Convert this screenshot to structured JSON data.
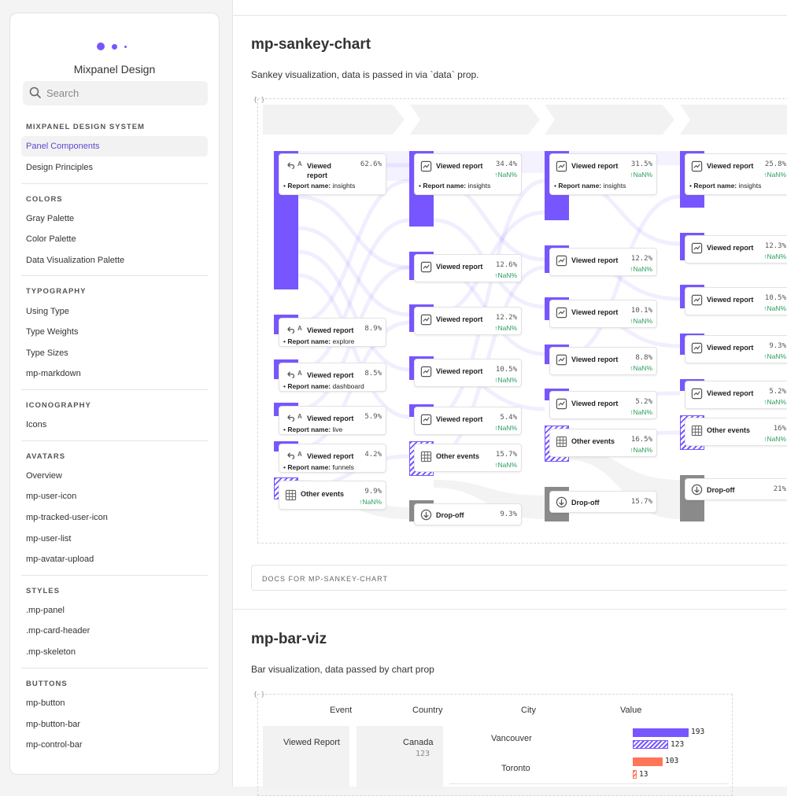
{
  "sidebar": {
    "brand": "Mixpanel Design",
    "search_placeholder": "Search",
    "sections": [
      {
        "title": "MIXPANEL DESIGN SYSTEM",
        "items": [
          "Panel Components",
          "Design Principles"
        ]
      },
      {
        "title": "COLORS",
        "items": [
          "Gray Palette",
          "Color Palette",
          "Data Visualization Palette"
        ]
      },
      {
        "title": "TYPOGRAPHY",
        "items": [
          "Using Type",
          "Type Weights",
          "Type Sizes",
          "mp-markdown"
        ]
      },
      {
        "title": "ICONOGRAPHY",
        "items": [
          "Icons"
        ]
      },
      {
        "title": "AVATARS",
        "items": [
          "Overview",
          "mp-user-icon",
          "mp-tracked-user-icon",
          "mp-user-list",
          "mp-avatar-upload"
        ]
      },
      {
        "title": "STYLES",
        "items": [
          ".mp-panel",
          ".mp-card-header",
          ".mp-skeleton"
        ]
      },
      {
        "title": "BUTTONS",
        "items": [
          "mp-button",
          "mp-button-bar",
          "mp-control-bar"
        ]
      }
    ],
    "active_item": "Panel Components"
  },
  "sankey_section": {
    "title": "mp-sankey-chart",
    "description": "Sankey visualization, data is passed in via `data` prop.",
    "braces": "{ }",
    "docs_label": "DOCS FOR MP-SANKEY-CHART"
  },
  "sankey": {
    "colors": {
      "accent": "#7856ff",
      "dropoff": "#8a8a8a",
      "positive": "#2a9d5b"
    },
    "columns": [
      {
        "nodes": [
          {
            "title": "Viewed report",
            "pct": "62.6%",
            "prop_key": "Report name:",
            "prop_val": "insights",
            "icon": "undo-icon"
          },
          {
            "title": "Viewed report",
            "pct": "8.9%",
            "prop_key": "Report name:",
            "prop_val": "explore",
            "icon": "undo-icon"
          },
          {
            "title": "Viewed report",
            "pct": "8.5%",
            "prop_key": "Report name:",
            "prop_val": "dashboard",
            "icon": "undo-icon"
          },
          {
            "title": "Viewed report",
            "pct": "5.9%",
            "prop_key": "Report name:",
            "prop_val": "live",
            "icon": "undo-icon"
          },
          {
            "title": "Viewed report",
            "pct": "4.2%",
            "prop_key": "Report name:",
            "prop_val": "funnels",
            "icon": "undo-icon"
          },
          {
            "title": "Other events",
            "pct": "9.9%",
            "delta": "↑NaN%",
            "icon": "grid-icon"
          }
        ]
      },
      {
        "nodes": [
          {
            "title": "Viewed report",
            "pct": "34.4%",
            "delta": "↑NaN%",
            "prop_key": "Report name:",
            "prop_val": "insights"
          },
          {
            "title": "Viewed report",
            "pct": "12.6%",
            "delta": "↑NaN%"
          },
          {
            "title": "Viewed report",
            "pct": "12.2%",
            "delta": "↑NaN%"
          },
          {
            "title": "Viewed report",
            "pct": "10.5%",
            "delta": "↑NaN%"
          },
          {
            "title": "Viewed report",
            "pct": "5.4%",
            "delta": "↑NaN%"
          },
          {
            "title": "Other events",
            "pct": "15.7%",
            "delta": "↑NaN%"
          },
          {
            "title": "Drop-off",
            "pct": "9.3%"
          }
        ]
      },
      {
        "nodes": [
          {
            "title": "Viewed report",
            "pct": "31.5%",
            "delta": "↑NaN%",
            "prop_key": "Report name:",
            "prop_val": "insights"
          },
          {
            "title": "Viewed report",
            "pct": "12.2%",
            "delta": "↑NaN%"
          },
          {
            "title": "Viewed report",
            "pct": "10.1%",
            "delta": "↑NaN%"
          },
          {
            "title": "Viewed report",
            "pct": "8.8%",
            "delta": "↑NaN%"
          },
          {
            "title": "Viewed report",
            "pct": "5.2%",
            "delta": "↑NaN%"
          },
          {
            "title": "Other events",
            "pct": "16.5%",
            "delta": "↑NaN%"
          },
          {
            "title": "Drop-off",
            "pct": "15.7%"
          }
        ]
      },
      {
        "nodes": [
          {
            "title": "Viewed report",
            "pct": "25.8%",
            "delta": "↑NaN%",
            "prop_key": "Report name:",
            "prop_val": "insights"
          },
          {
            "title": "Viewed report",
            "pct": "12.3%",
            "delta": "↑NaN%"
          },
          {
            "title": "Viewed report",
            "pct": "10.5%",
            "delta": "↑NaN%"
          },
          {
            "title": "Viewed report",
            "pct": "9.3%",
            "delta": "↑NaN%"
          },
          {
            "title": "Viewed report",
            "pct": "5.2%",
            "delta": "↑NaN%"
          },
          {
            "title": "Other events",
            "pct": "16%",
            "delta": "↑NaN%"
          },
          {
            "title": "Drop-off",
            "pct": "21%"
          }
        ]
      }
    ]
  },
  "bar_section": {
    "title": "mp-bar-viz",
    "description": "Bar visualization, data passed by chart prop",
    "braces": "{ }",
    "headers": [
      "Event",
      "Country",
      "City",
      "Value"
    ],
    "event": "Viewed Report",
    "country": "Canada",
    "country_value": "123",
    "rows": [
      {
        "city": "Vancouver",
        "bars": [
          {
            "value": "193",
            "style": "solid",
            "color": "#7856ff"
          },
          {
            "value": "123",
            "style": "hatched",
            "color": "#7856ff"
          }
        ]
      },
      {
        "city": "Toronto",
        "bars": [
          {
            "value": "103",
            "style": "solid",
            "color": "#ff7557"
          },
          {
            "value": "13",
            "style": "hatched",
            "color": "#ff7557"
          }
        ]
      }
    ]
  }
}
